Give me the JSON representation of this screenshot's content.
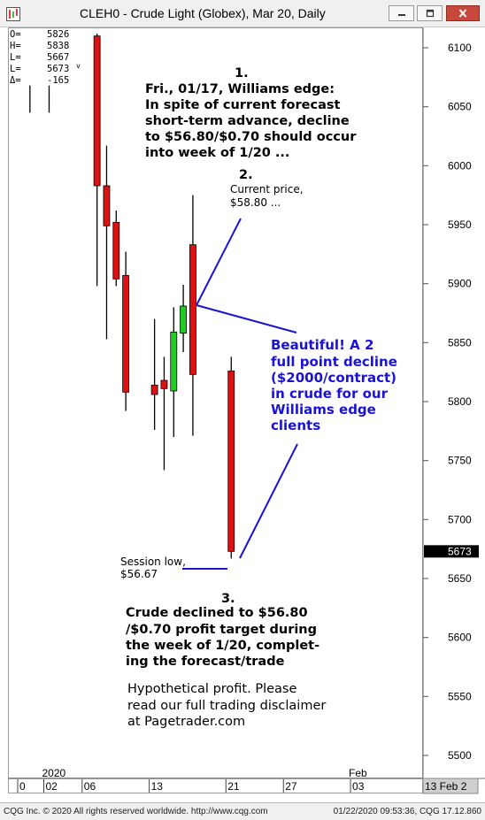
{
  "window": {
    "title": "CLEH0 - Crude Light (Globex), Mar 20, Daily",
    "icons": {
      "app": "cqg-chart-icon",
      "minimize": "minimize-icon",
      "maximize": "maximize-icon",
      "close": "close-icon"
    }
  },
  "ohlc_readout": [
    {
      "label": "O=",
      "value": "5826"
    },
    {
      "label": "H=",
      "value": "5838"
    },
    {
      "label": "L=",
      "value": "5667"
    },
    {
      "label": "L=",
      "value": "5673",
      "suffix": "v"
    },
    {
      "label": "Δ=",
      "value": "-165"
    }
  ],
  "annotations": {
    "note1": {
      "number": "1.",
      "lines": [
        "Fri., 01/17, Williams edge:",
        "In spite of current forecast",
        "short-term advance, decline",
        "to $56.80/$0.70 should occur",
        "into week of 1/20 ..."
      ]
    },
    "note2": {
      "number": "2.",
      "lines": [
        "Current price,",
        "$58.80 ..."
      ]
    },
    "beautiful": {
      "lines": [
        "Beautiful! A 2",
        "full point decline",
        "($2000/contract)",
        "in crude for our",
        "Williams edge",
        "clients"
      ]
    },
    "session_low": {
      "lines": [
        "Session low,",
        "$56.67"
      ]
    },
    "note3": {
      "number": "3.",
      "lines": [
        "Crude declined to $56.80",
        "/$0.70 profit target during",
        "the week of 1/20, complet-",
        "ing the forecast/trade"
      ]
    },
    "disclaimer": {
      "lines": [
        "Hypothetical profit.  Please",
        "read our full trading disclaimer",
        "at Pagetrader.com"
      ]
    }
  },
  "status_bar": {
    "left": "CQG Inc. © 2020 All rights reserved worldwide. http://www.cqg.com",
    "right": "01/22/2020 09:53:36, CQG 17.12.860"
  },
  "colors": {
    "up_candle": "#22cc22",
    "down_candle": "#dd1111",
    "annotation_blue": "#1a12d4",
    "price_marker_bg": "#000000"
  },
  "chart_data": {
    "type": "candlestick",
    "y_ticks": [
      "6100",
      "6050",
      "6000",
      "5950",
      "5900",
      "5850",
      "5800",
      "5750",
      "5700",
      "5650",
      "5600",
      "5550",
      "5500"
    ],
    "ylim": [
      5488,
      6112
    ],
    "current_price_label": "5673",
    "current_price": 5673,
    "x_ticks": [
      {
        "label": "0",
        "date": "2019-12-30"
      },
      {
        "label": "02",
        "date": "2020-01-02"
      },
      {
        "label": "06",
        "date": "2020-01-06"
      },
      {
        "label": "13",
        "date": "2020-01-13"
      },
      {
        "label": "21",
        "date": "2020-01-21"
      },
      {
        "label": "27",
        "date": "2020-01-27"
      },
      {
        "label": "03",
        "date": "2020-02-03"
      }
    ],
    "period_labels": [
      {
        "label": "2020",
        "date": "2020-01-02"
      },
      {
        "label": "Feb",
        "date": "2020-02-03"
      }
    ],
    "scroll_right_label": "13 Feb 2",
    "bars": [
      {
        "date": "2019-12-31",
        "open": null,
        "high": 6068,
        "low": 6045,
        "close": null
      },
      {
        "date": "2020-01-02",
        "open": null,
        "high": 6068,
        "low": 6045,
        "close": null
      },
      {
        "date": "2020-01-07",
        "open": 6110,
        "high": 6112,
        "low": 5898,
        "close": 5983
      },
      {
        "date": "2020-01-08",
        "open": 5983,
        "high": 6017,
        "low": 5853,
        "close": 5949
      },
      {
        "date": "2020-01-09",
        "open": 5952,
        "high": 5962,
        "low": 5898,
        "close": 5904
      },
      {
        "date": "2020-01-10",
        "open": 5907,
        "high": 5927,
        "low": 5792,
        "close": 5808
      },
      {
        "date": "2020-01-13",
        "open": 5814,
        "high": 5870,
        "low": 5776,
        "close": 5806
      },
      {
        "date": "2020-01-14",
        "open": 5818,
        "high": 5838,
        "low": 5742,
        "close": 5811
      },
      {
        "date": "2020-01-15",
        "open": 5809,
        "high": 5880,
        "low": 5770,
        "close": 5859
      },
      {
        "date": "2020-01-16",
        "open": 5858,
        "high": 5899,
        "low": 5842,
        "close": 5881
      },
      {
        "date": "2020-01-17",
        "open": 5933,
        "high": 5975,
        "low": 5771,
        "close": 5823
      },
      {
        "date": "2020-01-21",
        "open": 5826,
        "high": 5838,
        "low": 5667,
        "close": 5673
      }
    ]
  }
}
